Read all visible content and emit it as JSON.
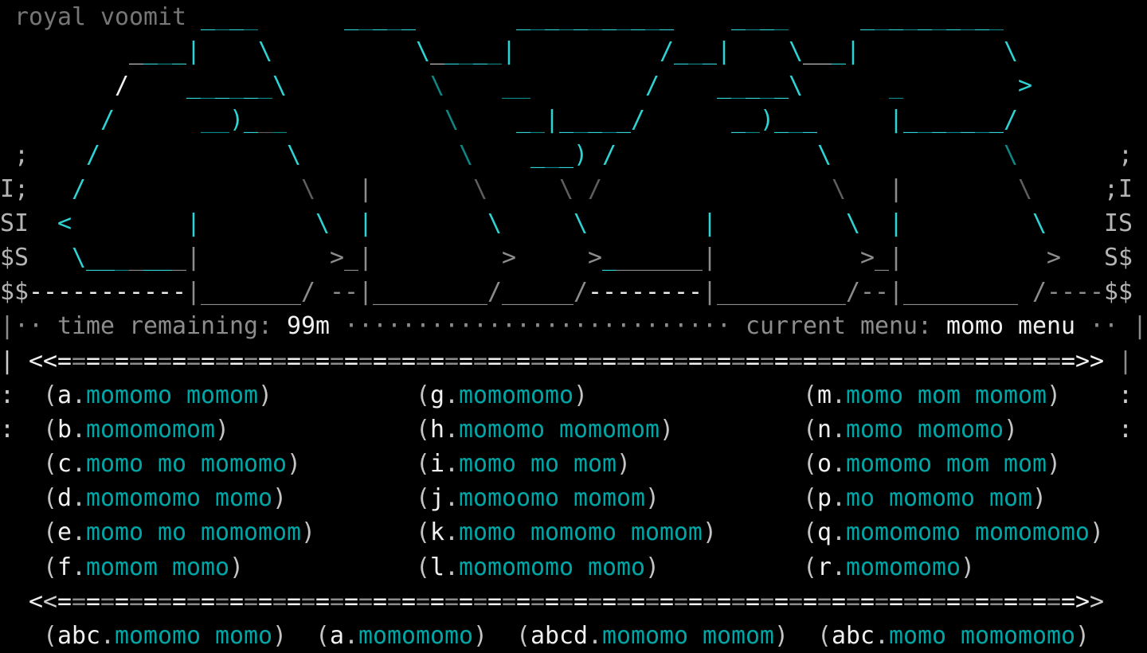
{
  "title": "royal voomit",
  "palette": {
    "background": "#000000",
    "art_cyan_bright": "#2fd3d3",
    "art_cyan_dim": "#0f8686",
    "gray": "#8c8c8c",
    "light_gray": "#cccccc",
    "dark_gray": "#5e5e5e",
    "white": "#f0f0f0",
    "menu_teal": "#00a6a6",
    "menu_punctuation": "#c4c4c4"
  },
  "status": {
    "left_bar": "|",
    "dots_left": "··",
    "time_label": "time remaining:",
    "time_value": "99m",
    "dots_mid": "···························",
    "menu_label": "current menu:",
    "menu_value": "momo menu",
    "dots_right": "··",
    "right_bar": "|"
  },
  "separator_top": {
    "edge_left": "|",
    "left_bracket": "<<",
    "fill": "=======================================================================",
    "right_bracket": ">>",
    "edge_right": "|"
  },
  "separator_bottom": {
    "left_bracket": "<<",
    "fill": "=======================================================================",
    "right_bracket": ">>"
  },
  "menu": {
    "item_format": {
      "open": "(",
      "sep": ".",
      "close": ")"
    },
    "items": [
      {
        "key": "a",
        "label": "momomo momom"
      },
      {
        "key": "b",
        "label": "momomomom"
      },
      {
        "key": "c",
        "label": "momo mo momomo"
      },
      {
        "key": "d",
        "label": "momomomo momo"
      },
      {
        "key": "e",
        "label": "momo mo momomom"
      },
      {
        "key": "f",
        "label": "momom momo"
      },
      {
        "key": "g",
        "label": "momomomo"
      },
      {
        "key": "h",
        "label": "momomo momomom"
      },
      {
        "key": "i",
        "label": "momo mo mom"
      },
      {
        "key": "j",
        "label": "momoomo momom"
      },
      {
        "key": "k",
        "label": "momo momomo momom"
      },
      {
        "key": "l",
        "label": "momomomo momo"
      },
      {
        "key": "m",
        "label": "momo mom momom"
      },
      {
        "key": "n",
        "label": "momo momomo"
      },
      {
        "key": "o",
        "label": "momomo mom mom"
      },
      {
        "key": "p",
        "label": "mo momomo mom"
      },
      {
        "key": "q",
        "label": "momomomo momomomo"
      },
      {
        "key": "r",
        "label": "momomomo"
      }
    ]
  },
  "bottom_menu": {
    "items": [
      {
        "key": "abc",
        "label": "momomo momo"
      },
      {
        "key": "a",
        "label": "momomomo"
      },
      {
        "key": "abcd",
        "label": "momomo momom"
      },
      {
        "key": "abc",
        "label": "momo momomomo"
      }
    ]
  },
  "ascii_art": {
    "rows": [
      [
        [
          14,
          "alt",
          "____"
        ],
        [
          24,
          "alt",
          "_____"
        ],
        [
          36,
          "alt",
          "___________"
        ],
        [
          51,
          "alt",
          "____"
        ],
        [
          60,
          "alt",
          "__________"
        ]
      ],
      [
        [
          9,
          "G",
          "_"
        ],
        [
          10,
          "alt",
          "___"
        ],
        [
          13,
          "c",
          "|"
        ],
        [
          18,
          "c",
          "\\"
        ],
        [
          29,
          "c",
          "\\"
        ],
        [
          30,
          "G",
          "_"
        ],
        [
          31,
          "alt",
          "____"
        ],
        [
          35,
          "c",
          "|"
        ],
        [
          46,
          "c",
          "/"
        ],
        [
          47,
          "alt",
          "___"
        ],
        [
          50,
          "c",
          "|"
        ],
        [
          55,
          "c",
          "\\"
        ],
        [
          56,
          "G",
          "__"
        ],
        [
          58,
          "c",
          "_"
        ],
        [
          59,
          "c",
          "|"
        ],
        [
          70,
          "c",
          "\\"
        ]
      ],
      [
        [
          8,
          "w",
          "/"
        ],
        [
          13,
          "alt",
          "______"
        ],
        [
          19,
          "c",
          "\\"
        ],
        [
          30,
          "d",
          "\\"
        ],
        [
          35,
          "d",
          "__"
        ],
        [
          45,
          "c",
          "/"
        ],
        [
          50,
          "alt",
          "_____"
        ],
        [
          55,
          "c",
          "\\"
        ],
        [
          62,
          "d",
          "_"
        ],
        [
          71,
          "c",
          ">"
        ]
      ],
      [
        [
          7,
          "c",
          "/"
        ],
        [
          14,
          "d",
          "__"
        ],
        [
          16,
          "c",
          ")"
        ],
        [
          17,
          "c",
          "_"
        ],
        [
          18,
          "gd",
          "_"
        ],
        [
          19,
          "d",
          "_"
        ],
        [
          31,
          "d",
          "\\"
        ],
        [
          36,
          "alt",
          "__"
        ],
        [
          38,
          "c",
          "|"
        ],
        [
          39,
          "alt",
          "_____"
        ],
        [
          44,
          "c",
          "/"
        ],
        [
          51,
          "alt",
          "__"
        ],
        [
          53,
          "c",
          ")"
        ],
        [
          54,
          "alt",
          "___"
        ],
        [
          62,
          "c",
          "|"
        ],
        [
          63,
          "alt",
          "_______"
        ],
        [
          70,
          "c",
          "/"
        ]
      ],
      [
        [
          1,
          "e",
          ";"
        ],
        [
          6,
          "c",
          "/"
        ],
        [
          20,
          "c",
          "\\"
        ],
        [
          32,
          "d",
          "\\"
        ],
        [
          37,
          "alt",
          "___"
        ],
        [
          40,
          "c",
          ")"
        ],
        [
          42,
          "c",
          "/"
        ],
        [
          57,
          "c",
          "\\"
        ],
        [
          70,
          "d",
          "\\"
        ],
        [
          78,
          "e",
          ";"
        ]
      ],
      [
        [
          0,
          "e",
          "I;"
        ],
        [
          5,
          "c",
          "/"
        ],
        [
          21,
          "gd",
          "\\"
        ],
        [
          25,
          "g",
          "|"
        ],
        [
          33,
          "gd",
          "\\"
        ],
        [
          39,
          "gd",
          "\\"
        ],
        [
          41,
          "gd",
          "/"
        ],
        [
          58,
          "gd",
          "\\"
        ],
        [
          62,
          "g",
          "|"
        ],
        [
          71,
          "gd",
          "\\"
        ],
        [
          77,
          "e",
          ";I"
        ]
      ],
      [
        [
          0,
          "e",
          "SI"
        ],
        [
          4,
          "c",
          "<"
        ],
        [
          13,
          "c",
          "|"
        ],
        [
          22,
          "c",
          "\\"
        ],
        [
          25,
          "c",
          "|"
        ],
        [
          34,
          "c",
          "\\"
        ],
        [
          40,
          "c",
          "\\"
        ],
        [
          49,
          "c",
          "|"
        ],
        [
          59,
          "c",
          "\\"
        ],
        [
          62,
          "c",
          "|"
        ],
        [
          72,
          "c",
          "\\"
        ],
        [
          77,
          "e",
          "IS"
        ]
      ],
      [
        [
          0,
          "e",
          "$S"
        ],
        [
          5,
          "c",
          "\\"
        ],
        [
          6,
          "c",
          "__"
        ],
        [
          8,
          "d",
          "_"
        ],
        [
          9,
          "g",
          "_"
        ],
        [
          10,
          "c",
          "__"
        ],
        [
          12,
          "g",
          "_"
        ],
        [
          13,
          "g",
          "|"
        ],
        [
          23,
          "g",
          ">"
        ],
        [
          24,
          "g",
          "_"
        ],
        [
          25,
          "g",
          "|"
        ],
        [
          35,
          "g",
          ">"
        ],
        [
          41,
          "g",
          ">"
        ],
        [
          42,
          "c",
          "_"
        ],
        [
          43,
          "g",
          "______"
        ],
        [
          49,
          "g",
          "|"
        ],
        [
          60,
          "g",
          ">"
        ],
        [
          61,
          "g",
          "_"
        ],
        [
          62,
          "g",
          "|"
        ],
        [
          73,
          "g",
          ">"
        ],
        [
          77,
          "e",
          "S$"
        ]
      ],
      [
        [
          0,
          "e",
          "$$"
        ],
        [
          2,
          "w",
          "-----------"
        ],
        [
          13,
          "g",
          "|"
        ],
        [
          14,
          "g",
          "_______"
        ],
        [
          21,
          "g",
          "/"
        ],
        [
          23,
          "g",
          "--"
        ],
        [
          25,
          "g",
          "|"
        ],
        [
          26,
          "g",
          "________"
        ],
        [
          34,
          "g",
          "/"
        ],
        [
          35,
          "g",
          "_____"
        ],
        [
          40,
          "g",
          "/"
        ],
        [
          41,
          "w",
          "--------"
        ],
        [
          49,
          "g",
          "|"
        ],
        [
          50,
          "g",
          "_________"
        ],
        [
          59,
          "g",
          "/"
        ],
        [
          60,
          "g",
          "--"
        ],
        [
          62,
          "g",
          "|"
        ],
        [
          63,
          "g",
          "________"
        ],
        [
          72,
          "g",
          "/"
        ],
        [
          73,
          "g",
          "----"
        ],
        [
          77,
          "e",
          "$$"
        ]
      ]
    ],
    "marks": [
      [
        11,
        0,
        "G",
        ":"
      ],
      [
        11,
        78,
        "G",
        ":"
      ],
      [
        12,
        0,
        "G",
        ":"
      ],
      [
        12,
        78,
        "G",
        ":"
      ]
    ]
  }
}
